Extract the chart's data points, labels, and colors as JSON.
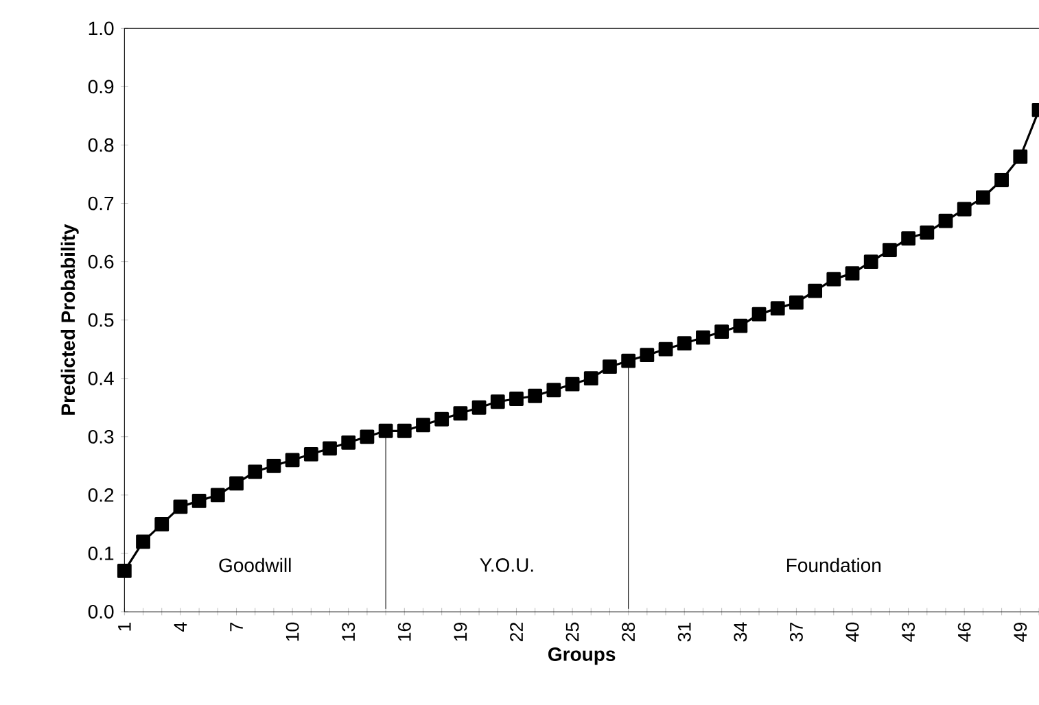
{
  "chart_data": {
    "type": "line",
    "xlabel": "Groups",
    "ylabel": "Predicted Probability",
    "x": [
      1,
      2,
      3,
      4,
      5,
      6,
      7,
      8,
      9,
      10,
      11,
      12,
      13,
      14,
      15,
      16,
      17,
      18,
      19,
      20,
      21,
      22,
      23,
      24,
      25,
      26,
      27,
      28,
      29,
      30,
      31,
      32,
      33,
      34,
      35,
      36,
      37,
      38,
      39,
      40,
      41,
      42,
      43,
      44,
      45,
      46,
      47,
      48,
      49,
      50
    ],
    "values": [
      0.07,
      0.12,
      0.15,
      0.18,
      0.19,
      0.2,
      0.22,
      0.24,
      0.25,
      0.26,
      0.27,
      0.28,
      0.29,
      0.3,
      0.31,
      0.31,
      0.32,
      0.33,
      0.34,
      0.35,
      0.36,
      0.365,
      0.37,
      0.38,
      0.39,
      0.4,
      0.42,
      0.43,
      0.44,
      0.45,
      0.46,
      0.47,
      0.48,
      0.49,
      0.51,
      0.52,
      0.53,
      0.55,
      0.57,
      0.58,
      0.6,
      0.62,
      0.64,
      0.65,
      0.67,
      0.69,
      0.71,
      0.74,
      0.78,
      0.86
    ],
    "color": "#000000",
    "marker": "square",
    "line_style": "solid",
    "xlim": [
      1,
      50
    ],
    "xticks": [
      1,
      {
        "value": 2,
        "label": null
      },
      {
        "value": 3,
        "label": null
      },
      4,
      {
        "value": 5,
        "label": null
      },
      {
        "value": 6,
        "label": null
      },
      7,
      {
        "value": 8,
        "label": null
      },
      {
        "value": 9,
        "label": null
      },
      10,
      {
        "value": 11,
        "label": null
      },
      {
        "value": 12,
        "label": null
      },
      13,
      {
        "value": 14,
        "label": null
      },
      {
        "value": 15,
        "label": null
      },
      16,
      {
        "value": 17,
        "label": null
      },
      {
        "value": 18,
        "label": null
      },
      19,
      {
        "value": 20,
        "label": null
      },
      {
        "value": 21,
        "label": null
      },
      22,
      {
        "value": 23,
        "label": null
      },
      {
        "value": 24,
        "label": null
      },
      25,
      {
        "value": 26,
        "label": null
      },
      {
        "value": 27,
        "label": null
      },
      28,
      {
        "value": 29,
        "label": null
      },
      {
        "value": 30,
        "label": null
      },
      31,
      {
        "value": 32,
        "label": null
      },
      {
        "value": 33,
        "label": null
      },
      34,
      {
        "value": 35,
        "label": null
      },
      {
        "value": 36,
        "label": null
      },
      37,
      {
        "value": 38,
        "label": null
      },
      {
        "value": 39,
        "label": null
      },
      40,
      {
        "value": 41,
        "label": null
      },
      {
        "value": 42,
        "label": null
      },
      43,
      {
        "value": 44,
        "label": null
      },
      {
        "value": 45,
        "label": null
      },
      46,
      {
        "value": 47,
        "label": null
      },
      {
        "value": 48,
        "label": null
      },
      49,
      {
        "value": 50,
        "label": null
      }
    ],
    "ylim": [
      0,
      1
    ],
    "yticks": [
      {
        "value": 0,
        "label": "0.0"
      },
      {
        "value": 0.1,
        "label": "0.1"
      },
      {
        "value": 0.2,
        "label": "0.2"
      },
      {
        "value": 0.3,
        "label": "0.3"
      },
      {
        "value": 0.4,
        "label": "0.4"
      },
      {
        "value": 0.5,
        "label": "0.5"
      },
      {
        "value": 0.6,
        "label": "0.6"
      },
      {
        "value": 0.7,
        "label": "0.7"
      },
      {
        "value": 0.8,
        "label": "0.8"
      },
      {
        "value": 0.9,
        "label": "0.9"
      },
      {
        "value": 1,
        "label": "1.0"
      }
    ],
    "ref_lines": [
      {
        "axis": "x",
        "value": 15
      },
      {
        "axis": "x",
        "value": 28
      }
    ],
    "annotations": [
      "Goodwill",
      "Y.O.U.",
      "Foundation"
    ]
  }
}
